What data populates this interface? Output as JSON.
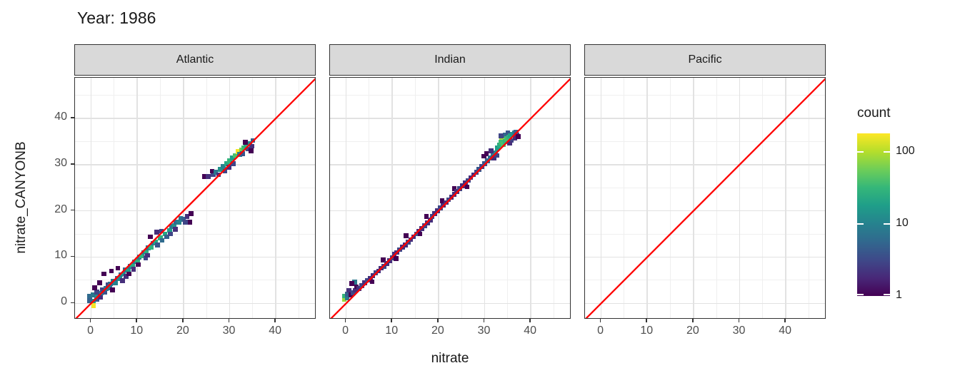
{
  "title": "Year: 1986",
  "axes": {
    "x": {
      "label": "nitrate",
      "ticks": [
        0,
        10,
        20,
        30,
        40
      ],
      "minor_ticks": [
        5,
        15,
        25,
        35,
        45
      ],
      "min": -3.5,
      "max": 48.8
    },
    "y": {
      "label": "nitrate_CANYONB",
      "ticks": [
        0,
        10,
        20,
        30,
        40
      ],
      "minor_ticks": [
        5,
        15,
        25,
        35,
        45
      ],
      "min": -3.5,
      "max": 48.8
    }
  },
  "legend": {
    "title": "count",
    "scale": "log10",
    "max_count": 180,
    "ticks": [
      {
        "label": "100",
        "value": 100
      },
      {
        "label": "10",
        "value": 10
      },
      {
        "label": "1",
        "value": 1
      }
    ]
  },
  "colors": {
    "abline": "#ff0000",
    "strip_fill": "#d9d9d9",
    "panel_border": "#333333",
    "grid_major": "#e2e2e2",
    "grid_minor": "#efefef",
    "axis_text": "#4d4d4d",
    "text": "#1a1a1a",
    "viridis": [
      "#440154",
      "#482878",
      "#3e4989",
      "#31688e",
      "#26828e",
      "#1f9e89",
      "#35b779",
      "#6ece58",
      "#b5de2b",
      "#fde725"
    ]
  },
  "chart_data": {
    "type": "heatmap",
    "subtype": "bin2d",
    "title": "Year: 1986",
    "xlabel": "nitrate",
    "ylabel": "nitrate_CANYONB",
    "xlim": [
      -3.5,
      48.8
    ],
    "ylim": [
      -3.5,
      48.8
    ],
    "grid": true,
    "legend_position": "right",
    "abline": {
      "slope": 1,
      "intercept": 0,
      "color": "#ff0000"
    },
    "bin_format": "[x, y, count]",
    "facets": [
      {
        "label": "Atlantic",
        "bins": [
          [
            0.5,
            -0.5,
            170
          ],
          [
            0.5,
            0.5,
            15
          ],
          [
            -0.3,
            0.6,
            5
          ],
          [
            -0.3,
            1.6,
            6
          ],
          [
            0.4,
            1.8,
            8
          ],
          [
            1.2,
            0.8,
            4
          ],
          [
            1.4,
            1.6,
            12
          ],
          [
            1.2,
            2.4,
            3
          ],
          [
            0.8,
            3.4,
            1
          ],
          [
            2,
            1.4,
            2
          ],
          [
            2.2,
            2.2,
            8
          ],
          [
            2.4,
            3,
            3
          ],
          [
            1.8,
            4.4,
            1
          ],
          [
            3,
            2.4,
            4
          ],
          [
            3.2,
            3.2,
            7
          ],
          [
            3.6,
            4,
            3
          ],
          [
            2.8,
            6.4,
            1
          ],
          [
            4,
            3.4,
            8
          ],
          [
            4.2,
            4.2,
            6
          ],
          [
            4.6,
            2.9,
            1
          ],
          [
            4.8,
            4.8,
            9
          ],
          [
            5.2,
            4.4,
            10
          ],
          [
            5.6,
            5.4,
            5
          ],
          [
            4.4,
            7,
            1
          ],
          [
            5.8,
            7.6,
            1
          ],
          [
            6.2,
            5.4,
            12
          ],
          [
            6.4,
            6.2,
            7
          ],
          [
            6.8,
            4.9,
            2
          ],
          [
            7,
            6.4,
            14
          ],
          [
            7.4,
            7.2,
            6
          ],
          [
            7.6,
            5.8,
            2
          ],
          [
            8,
            7.2,
            18
          ],
          [
            8.4,
            8,
            7
          ],
          [
            8.2,
            6.4,
            1
          ],
          [
            9,
            8.2,
            22
          ],
          [
            9.4,
            9,
            8
          ],
          [
            9.2,
            7.4,
            2
          ],
          [
            10,
            9.2,
            25
          ],
          [
            10.4,
            10,
            8
          ],
          [
            10.2,
            8.4,
            1
          ],
          [
            11,
            10.2,
            28
          ],
          [
            11.4,
            11,
            10
          ],
          [
            11.8,
            9.8,
            3
          ],
          [
            12,
            11.2,
            25
          ],
          [
            12.4,
            12,
            8
          ],
          [
            12.2,
            10.4,
            2
          ],
          [
            13,
            12.2,
            28
          ],
          [
            13.4,
            13,
            7
          ],
          [
            12.8,
            14.4,
            1
          ],
          [
            14,
            13.2,
            22
          ],
          [
            14.4,
            12.6,
            4
          ],
          [
            14.2,
            15.4,
            2
          ],
          [
            15,
            14.2,
            26
          ],
          [
            15.4,
            13.6,
            6
          ],
          [
            15.2,
            15.6,
            3
          ],
          [
            16,
            15,
            22
          ],
          [
            16.4,
            14.4,
            5
          ],
          [
            17,
            15.8,
            18
          ],
          [
            17.4,
            16.6,
            8
          ],
          [
            17.2,
            15,
            3
          ],
          [
            18,
            16.8,
            14
          ],
          [
            18.4,
            17.6,
            6
          ],
          [
            18.2,
            16,
            2
          ],
          [
            19,
            17.6,
            10
          ],
          [
            19.4,
            18.4,
            7
          ],
          [
            20,
            18.2,
            5
          ],
          [
            20.4,
            17.6,
            3
          ],
          [
            20.8,
            18.8,
            2
          ],
          [
            21.6,
            19.4,
            1
          ],
          [
            21.4,
            17.6,
            1
          ],
          [
            24.6,
            27.4,
            1
          ],
          [
            25.4,
            27.4,
            2
          ],
          [
            26.4,
            27.8,
            3
          ],
          [
            26.2,
            28.6,
            1
          ],
          [
            27,
            28.4,
            8
          ],
          [
            27.6,
            27.8,
            2
          ],
          [
            28,
            29,
            14
          ],
          [
            28.6,
            29.6,
            10
          ],
          [
            29,
            28.6,
            3
          ],
          [
            29.4,
            30.2,
            22
          ],
          [
            29.8,
            29.4,
            2
          ],
          [
            30,
            30.8,
            30
          ],
          [
            30.6,
            31.4,
            18
          ],
          [
            30.8,
            30.2,
            3
          ],
          [
            31.2,
            32,
            40
          ],
          [
            31.8,
            32.8,
            170
          ],
          [
            32.2,
            32.2,
            8
          ],
          [
            32.6,
            33.2,
            60
          ],
          [
            33,
            33.6,
            35
          ],
          [
            32.8,
            32.4,
            4
          ],
          [
            33.6,
            34,
            25
          ],
          [
            34,
            33.4,
            3
          ],
          [
            34.4,
            34.6,
            12
          ],
          [
            34.8,
            34,
            2
          ],
          [
            35,
            35.2,
            5
          ],
          [
            33.4,
            34.8,
            1
          ],
          [
            34.6,
            33,
            1
          ]
        ]
      },
      {
        "label": "Indian",
        "bins": [
          [
            -0.4,
            0.8,
            80
          ],
          [
            -0.4,
            1.6,
            30
          ],
          [
            0.2,
            1.2,
            8
          ],
          [
            0.3,
            2,
            5
          ],
          [
            0.6,
            2.8,
            2
          ],
          [
            1,
            1.8,
            1
          ],
          [
            1.5,
            2.3,
            3
          ],
          [
            2,
            2.8,
            2
          ],
          [
            2.2,
            3.6,
            1
          ],
          [
            2.8,
            3.2,
            2
          ],
          [
            3.4,
            3.8,
            3
          ],
          [
            1.8,
            4.6,
            8
          ],
          [
            1.2,
            4.3,
            1
          ],
          [
            4,
            4.4,
            2
          ],
          [
            4.6,
            5,
            3
          ],
          [
            5.2,
            5.4,
            2
          ],
          [
            5.6,
            4.7,
            1
          ],
          [
            5.8,
            6,
            2
          ],
          [
            6.4,
            6.6,
            3
          ],
          [
            7,
            7,
            2
          ],
          [
            7.6,
            7.6,
            2
          ],
          [
            8,
            9.4,
            1
          ],
          [
            8.2,
            8,
            3
          ],
          [
            8.8,
            8.6,
            2
          ],
          [
            9.4,
            9.2,
            2
          ],
          [
            10,
            9.8,
            3
          ],
          [
            10.4,
            10.6,
            2
          ],
          [
            10.8,
            9.7,
            1
          ],
          [
            11,
            11,
            2
          ],
          [
            11.6,
            11.6,
            3
          ],
          [
            12.2,
            12.2,
            2
          ],
          [
            12.8,
            12.6,
            2
          ],
          [
            13,
            14.6,
            1
          ],
          [
            13.4,
            13.2,
            3
          ],
          [
            14,
            13.8,
            2
          ],
          [
            14.6,
            14.4,
            2
          ],
          [
            15.2,
            15,
            4
          ],
          [
            15.8,
            15.6,
            2
          ],
          [
            16,
            15,
            1
          ],
          [
            16.4,
            16.2,
            2
          ],
          [
            17,
            16.8,
            3
          ],
          [
            17.4,
            18.8,
            1
          ],
          [
            17.6,
            17.4,
            2
          ],
          [
            18.2,
            18,
            2
          ],
          [
            18.6,
            18.8,
            3
          ],
          [
            19.2,
            19.4,
            2
          ],
          [
            19.8,
            20,
            2
          ],
          [
            20.4,
            20.6,
            3
          ],
          [
            20.8,
            22.2,
            1
          ],
          [
            21,
            21.2,
            2
          ],
          [
            21.6,
            21.8,
            2
          ],
          [
            22.2,
            22.4,
            3
          ],
          [
            22.8,
            23,
            2
          ],
          [
            23.4,
            23.6,
            2
          ],
          [
            23.4,
            24.8,
            1
          ],
          [
            24,
            24.2,
            2
          ],
          [
            24.6,
            24.8,
            3
          ],
          [
            25.2,
            25.4,
            2
          ],
          [
            25.8,
            26,
            2
          ],
          [
            26.2,
            25.2,
            1
          ],
          [
            26.4,
            26.6,
            3
          ],
          [
            27,
            27.2,
            2
          ],
          [
            27.6,
            27.8,
            2
          ],
          [
            28.2,
            28.4,
            3
          ],
          [
            28.8,
            29,
            4
          ],
          [
            29.4,
            29.6,
            3
          ],
          [
            30,
            30.2,
            4
          ],
          [
            29.8,
            31.8,
            1
          ],
          [
            30.4,
            32.4,
            1
          ],
          [
            30.6,
            30.8,
            5
          ],
          [
            31.2,
            31.4,
            6
          ],
          [
            31.4,
            33,
            2
          ],
          [
            31.8,
            32,
            8
          ],
          [
            32,
            31.4,
            2
          ],
          [
            32.4,
            32.6,
            12
          ],
          [
            32.6,
            32,
            3
          ],
          [
            32.8,
            33.6,
            18
          ],
          [
            33.2,
            34.2,
            25
          ],
          [
            33.7,
            35.5,
            90
          ],
          [
            33.6,
            34.8,
            35
          ],
          [
            34,
            34.4,
            40
          ],
          [
            34.4,
            35,
            30
          ],
          [
            34.4,
            36.4,
            6
          ],
          [
            34.8,
            35.6,
            35
          ],
          [
            35,
            36.8,
            4
          ],
          [
            35.2,
            36,
            28
          ],
          [
            35.6,
            36.3,
            20
          ],
          [
            35.8,
            35.2,
            3
          ],
          [
            36,
            36.6,
            14
          ],
          [
            36.4,
            36.8,
            9
          ],
          [
            36.8,
            37,
            5
          ],
          [
            37,
            36.4,
            3
          ],
          [
            36.6,
            35.8,
            2
          ],
          [
            37.3,
            36.1,
            1
          ],
          [
            33.6,
            36.2,
            3
          ],
          [
            35.4,
            34.6,
            2
          ]
        ]
      },
      {
        "label": "Pacific",
        "bins": []
      }
    ]
  }
}
